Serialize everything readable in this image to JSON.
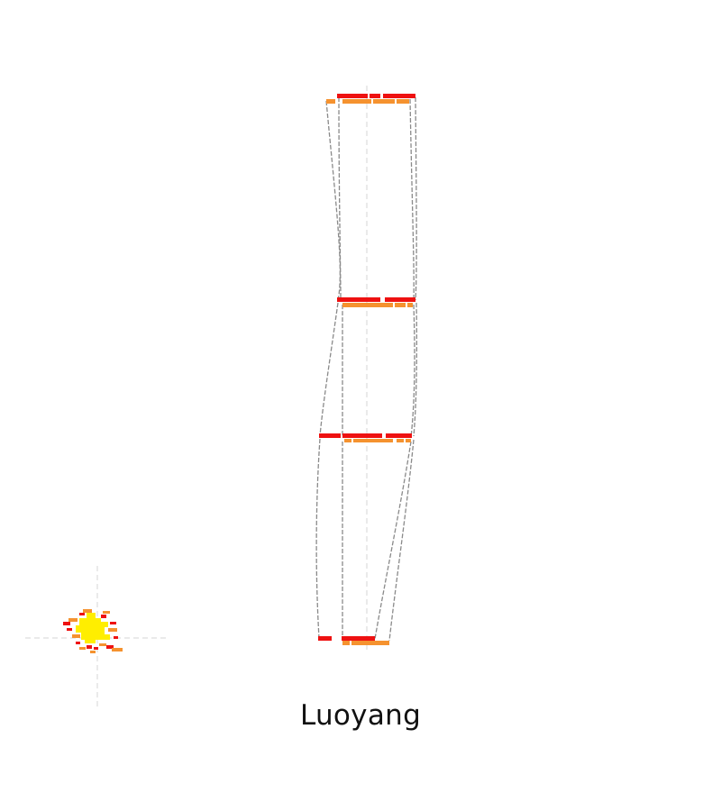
{
  "caption": "Luoyang",
  "colors": {
    "upper_band": "#ee1111",
    "lower_band": "#f5922f",
    "connector": "#8a8a8a",
    "axis": "#cfcfcf",
    "cluster_core": "#ffee00",
    "cluster_mid": "#f5922f",
    "cluster_outer": "#ee1111",
    "text": "#111111"
  }
}
